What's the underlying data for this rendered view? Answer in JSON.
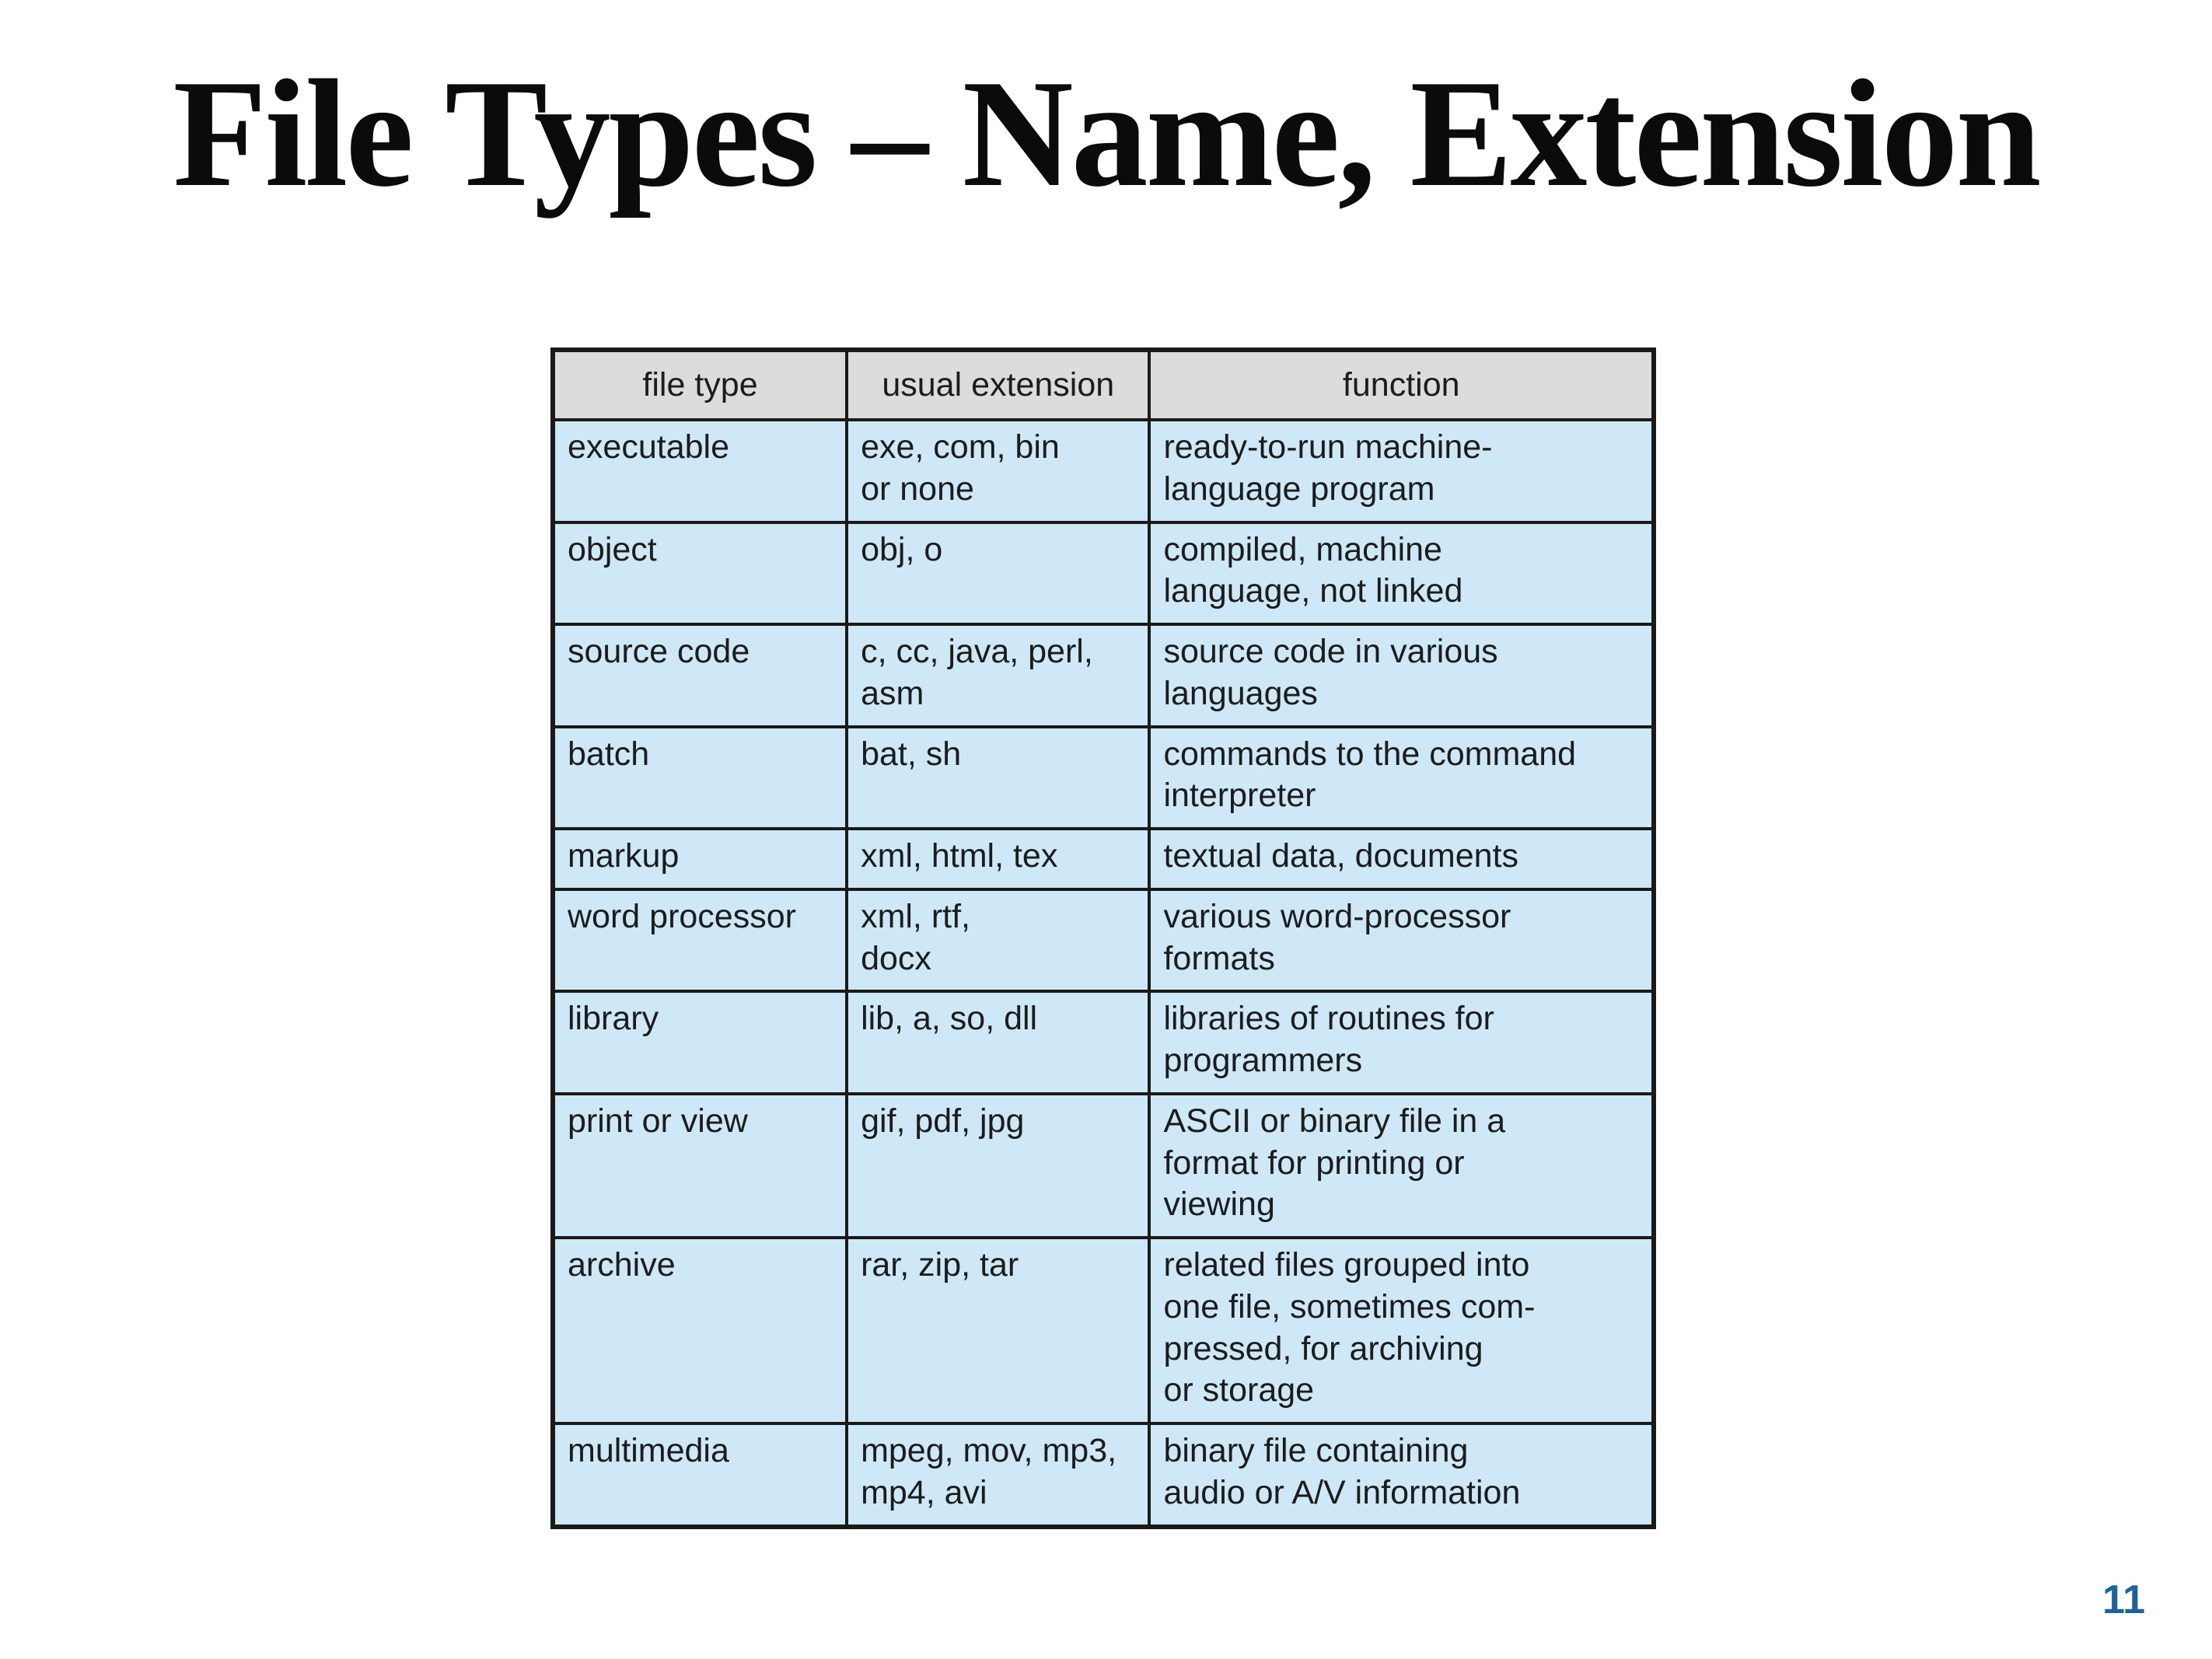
{
  "slide": {
    "title": "File Types – Name, Extension",
    "page_number": "11"
  },
  "table": {
    "headers": [
      "file type",
      "usual extension",
      "function"
    ],
    "rows": [
      {
        "file_type": "executable",
        "extension": "exe, com, bin\nor none",
        "function": "ready-to-run machine-\nlanguage program"
      },
      {
        "file_type": "object",
        "extension": "obj, o",
        "function": "compiled, machine\nlanguage, not linked"
      },
      {
        "file_type": "source code",
        "extension": "c, cc, java, perl,\nasm",
        "function": "source code in various\nlanguages"
      },
      {
        "file_type": "batch",
        "extension": "bat, sh",
        "function": "commands to the command\ninterpreter"
      },
      {
        "file_type": "markup",
        "extension": "xml, html, tex",
        "function": "textual data, documents"
      },
      {
        "file_type": "word processor",
        "extension": "xml, rtf,\ndocx",
        "function": "various word-processor\nformats"
      },
      {
        "file_type": "library",
        "extension": "lib, a, so, dll",
        "function": "libraries of routines for\nprogrammers"
      },
      {
        "file_type": "print or view",
        "extension": "gif, pdf, jpg",
        "function": "ASCII or binary file in a\nformat for printing or\nviewing"
      },
      {
        "file_type": "archive",
        "extension": "rar, zip, tar",
        "function": "related files grouped into\none file, sometimes com-\npressed, for archiving\nor storage"
      },
      {
        "file_type": "multimedia",
        "extension": "mpeg, mov, mp3,\nmp4, avi",
        "function": "binary file containing\naudio or A/V information"
      }
    ]
  },
  "colors": {
    "header_bg": "#dcdcde",
    "row_bg": "#cfe8f8",
    "border": "#1a1a1a",
    "title_color": "#0b0b0b",
    "page_number_color": "#1d6396"
  }
}
